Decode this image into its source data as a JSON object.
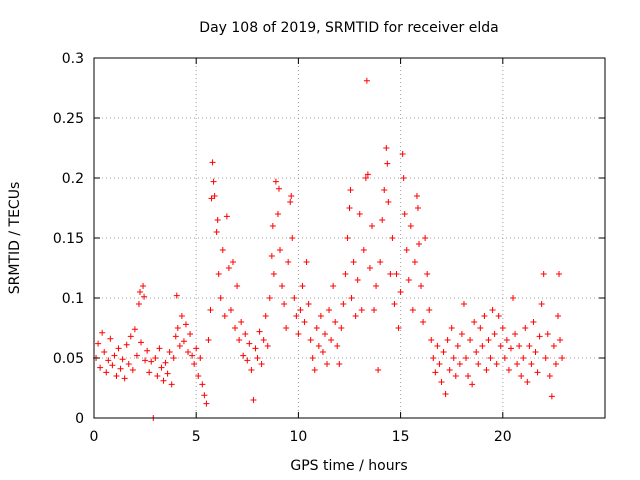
{
  "chart_data": {
    "type": "scatter",
    "title": "Day 108 of 2019, SRMTID for receiver elda",
    "xlabel": "GPS time / hours",
    "ylabel": "SRMTID / TECUs",
    "xlim": [
      0,
      25
    ],
    "ylim": [
      0,
      0.3
    ],
    "xticks": [
      0,
      5,
      10,
      15,
      20
    ],
    "yticks": [
      0,
      0.05,
      0.1,
      0.15,
      0.2,
      0.25,
      0.3
    ],
    "xtick_labels": [
      "0",
      "5",
      "10",
      "15",
      "20"
    ],
    "ytick_labels": [
      "0",
      "0.05",
      "0.1",
      "0.15",
      "0.2",
      "0.25",
      "0.3"
    ],
    "grid": true,
    "marker": "+",
    "color": "#ff0000",
    "series": [
      {
        "name": "SRMTID",
        "points": [
          [
            0.1,
            0.05
          ],
          [
            0.2,
            0.062
          ],
          [
            0.3,
            0.042
          ],
          [
            0.4,
            0.071
          ],
          [
            0.5,
            0.055
          ],
          [
            0.6,
            0.038
          ],
          [
            0.7,
            0.048
          ],
          [
            0.8,
            0.066
          ],
          [
            0.9,
            0.044
          ],
          [
            1.0,
            0.052
          ],
          [
            1.1,
            0.035
          ],
          [
            1.2,
            0.058
          ],
          [
            1.3,
            0.041
          ],
          [
            1.4,
            0.049
          ],
          [
            1.5,
            0.033
          ],
          [
            1.6,
            0.061
          ],
          [
            1.7,
            0.045
          ],
          [
            1.8,
            0.068
          ],
          [
            1.9,
            0.04
          ],
          [
            2.0,
            0.074
          ],
          [
            2.1,
            0.052
          ],
          [
            2.2,
            0.095
          ],
          [
            2.25,
            0.105
          ],
          [
            2.3,
            0.063
          ],
          [
            2.4,
            0.11
          ],
          [
            2.45,
            0.101
          ],
          [
            2.5,
            0.048
          ],
          [
            2.6,
            0.056
          ],
          [
            2.7,
            0.038
          ],
          [
            2.8,
            0.047
          ],
          [
            2.9,
            0.0
          ],
          [
            3.0,
            0.05
          ],
          [
            3.1,
            0.035
          ],
          [
            3.2,
            0.058
          ],
          [
            3.3,
            0.042
          ],
          [
            3.4,
            0.031
          ],
          [
            3.5,
            0.046
          ],
          [
            3.6,
            0.037
          ],
          [
            3.7,
            0.055
          ],
          [
            3.8,
            0.028
          ],
          [
            3.9,
            0.05
          ],
          [
            4.0,
            0.068
          ],
          [
            4.05,
            0.102
          ],
          [
            4.1,
            0.075
          ],
          [
            4.2,
            0.06
          ],
          [
            4.3,
            0.085
          ],
          [
            4.4,
            0.064
          ],
          [
            4.5,
            0.078
          ],
          [
            4.6,
            0.055
          ],
          [
            4.7,
            0.07
          ],
          [
            4.8,
            0.052
          ],
          [
            4.9,
            0.045
          ],
          [
            5.0,
            0.058
          ],
          [
            5.1,
            0.035
          ],
          [
            5.2,
            0.05
          ],
          [
            5.3,
            0.028
          ],
          [
            5.4,
            0.019
          ],
          [
            5.5,
            0.012
          ],
          [
            5.6,
            0.065
          ],
          [
            5.7,
            0.09
          ],
          [
            5.75,
            0.183
          ],
          [
            5.8,
            0.213
          ],
          [
            5.85,
            0.197
          ],
          [
            5.9,
            0.185
          ],
          [
            6.0,
            0.155
          ],
          [
            6.05,
            0.165
          ],
          [
            6.1,
            0.12
          ],
          [
            6.2,
            0.1
          ],
          [
            6.3,
            0.14
          ],
          [
            6.4,
            0.085
          ],
          [
            6.5,
            0.168
          ],
          [
            6.6,
            0.125
          ],
          [
            6.7,
            0.09
          ],
          [
            6.8,
            0.13
          ],
          [
            6.9,
            0.075
          ],
          [
            7.0,
            0.11
          ],
          [
            7.1,
            0.065
          ],
          [
            7.2,
            0.08
          ],
          [
            7.3,
            0.052
          ],
          [
            7.4,
            0.07
          ],
          [
            7.5,
            0.048
          ],
          [
            7.6,
            0.062
          ],
          [
            7.7,
            0.04
          ],
          [
            7.8,
            0.015
          ],
          [
            7.9,
            0.058
          ],
          [
            8.0,
            0.05
          ],
          [
            8.1,
            0.072
          ],
          [
            8.2,
            0.045
          ],
          [
            8.3,
            0.065
          ],
          [
            8.4,
            0.085
          ],
          [
            8.5,
            0.06
          ],
          [
            8.6,
            0.1
          ],
          [
            8.7,
            0.135
          ],
          [
            8.75,
            0.16
          ],
          [
            8.8,
            0.12
          ],
          [
            8.9,
            0.197
          ],
          [
            9.0,
            0.17
          ],
          [
            9.05,
            0.191
          ],
          [
            9.1,
            0.14
          ],
          [
            9.2,
            0.11
          ],
          [
            9.3,
            0.095
          ],
          [
            9.4,
            0.075
          ],
          [
            9.5,
            0.13
          ],
          [
            9.6,
            0.18
          ],
          [
            9.65,
            0.185
          ],
          [
            9.7,
            0.15
          ],
          [
            9.8,
            0.1
          ],
          [
            9.9,
            0.085
          ],
          [
            10.0,
            0.07
          ],
          [
            10.1,
            0.09
          ],
          [
            10.2,
            0.11
          ],
          [
            10.3,
            0.08
          ],
          [
            10.4,
            0.13
          ],
          [
            10.5,
            0.095
          ],
          [
            10.6,
            0.065
          ],
          [
            10.7,
            0.05
          ],
          [
            10.8,
            0.04
          ],
          [
            10.9,
            0.075
          ],
          [
            11.0,
            0.06
          ],
          [
            11.1,
            0.085
          ],
          [
            11.2,
            0.055
          ],
          [
            11.3,
            0.07
          ],
          [
            11.4,
            0.045
          ],
          [
            11.5,
            0.09
          ],
          [
            11.6,
            0.065
          ],
          [
            11.7,
            0.11
          ],
          [
            11.8,
            0.08
          ],
          [
            11.9,
            0.06
          ],
          [
            12.0,
            0.045
          ],
          [
            12.1,
            0.075
          ],
          [
            12.2,
            0.095
          ],
          [
            12.3,
            0.12
          ],
          [
            12.4,
            0.15
          ],
          [
            12.5,
            0.175
          ],
          [
            12.55,
            0.19
          ],
          [
            12.6,
            0.1
          ],
          [
            12.7,
            0.13
          ],
          [
            12.8,
            0.085
          ],
          [
            12.9,
            0.115
          ],
          [
            13.0,
            0.17
          ],
          [
            13.1,
            0.09
          ],
          [
            13.2,
            0.14
          ],
          [
            13.3,
            0.2
          ],
          [
            13.35,
            0.281
          ],
          [
            13.4,
            0.203
          ],
          [
            13.5,
            0.125
          ],
          [
            13.6,
            0.16
          ],
          [
            13.7,
            0.09
          ],
          [
            13.8,
            0.11
          ],
          [
            13.9,
            0.04
          ],
          [
            14.0,
            0.13
          ],
          [
            14.1,
            0.165
          ],
          [
            14.2,
            0.19
          ],
          [
            14.3,
            0.225
          ],
          [
            14.35,
            0.212
          ],
          [
            14.4,
            0.18
          ],
          [
            14.5,
            0.12
          ],
          [
            14.6,
            0.15
          ],
          [
            14.7,
            0.095
          ],
          [
            14.8,
            0.12
          ],
          [
            14.9,
            0.075
          ],
          [
            15.0,
            0.105
          ],
          [
            15.1,
            0.22
          ],
          [
            15.15,
            0.2
          ],
          [
            15.2,
            0.17
          ],
          [
            15.3,
            0.14
          ],
          [
            15.4,
            0.115
          ],
          [
            15.5,
            0.16
          ],
          [
            15.6,
            0.09
          ],
          [
            15.7,
            0.13
          ],
          [
            15.8,
            0.185
          ],
          [
            15.85,
            0.175
          ],
          [
            15.9,
            0.145
          ],
          [
            16.0,
            0.11
          ],
          [
            16.1,
            0.08
          ],
          [
            16.2,
            0.15
          ],
          [
            16.3,
            0.12
          ],
          [
            16.4,
            0.09
          ],
          [
            16.5,
            0.065
          ],
          [
            16.6,
            0.05
          ],
          [
            16.7,
            0.038
          ],
          [
            16.8,
            0.06
          ],
          [
            16.9,
            0.045
          ],
          [
            17.0,
            0.03
          ],
          [
            17.1,
            0.055
          ],
          [
            17.2,
            0.02
          ],
          [
            17.3,
            0.065
          ],
          [
            17.4,
            0.04
          ],
          [
            17.5,
            0.075
          ],
          [
            17.6,
            0.05
          ],
          [
            17.7,
            0.035
          ],
          [
            17.8,
            0.06
          ],
          [
            17.9,
            0.045
          ],
          [
            18.0,
            0.07
          ],
          [
            18.1,
            0.095
          ],
          [
            18.2,
            0.05
          ],
          [
            18.3,
            0.035
          ],
          [
            18.4,
            0.065
          ],
          [
            18.5,
            0.028
          ],
          [
            18.6,
            0.08
          ],
          [
            18.7,
            0.055
          ],
          [
            18.8,
            0.045
          ],
          [
            18.9,
            0.075
          ],
          [
            19.0,
            0.06
          ],
          [
            19.1,
            0.085
          ],
          [
            19.2,
            0.04
          ],
          [
            19.3,
            0.065
          ],
          [
            19.4,
            0.05
          ],
          [
            19.5,
            0.09
          ],
          [
            19.6,
            0.07
          ],
          [
            19.7,
            0.045
          ],
          [
            19.8,
            0.085
          ],
          [
            19.9,
            0.06
          ],
          [
            20.0,
            0.075
          ],
          [
            20.1,
            0.05
          ],
          [
            20.2,
            0.065
          ],
          [
            20.3,
            0.04
          ],
          [
            20.4,
            0.058
          ],
          [
            20.5,
            0.1
          ],
          [
            20.6,
            0.07
          ],
          [
            20.7,
            0.045
          ],
          [
            20.8,
            0.06
          ],
          [
            20.9,
            0.035
          ],
          [
            21.0,
            0.05
          ],
          [
            21.1,
            0.075
          ],
          [
            21.2,
            0.03
          ],
          [
            21.3,
            0.06
          ],
          [
            21.4,
            0.045
          ],
          [
            21.5,
            0.08
          ],
          [
            21.6,
            0.055
          ],
          [
            21.7,
            0.038
          ],
          [
            21.8,
            0.068
          ],
          [
            21.9,
            0.095
          ],
          [
            22.0,
            0.12
          ],
          [
            22.1,
            0.05
          ],
          [
            22.2,
            0.07
          ],
          [
            22.3,
            0.035
          ],
          [
            22.4,
            0.018
          ],
          [
            22.5,
            0.06
          ],
          [
            22.6,
            0.045
          ],
          [
            22.7,
            0.085
          ],
          [
            22.75,
            0.12
          ],
          [
            22.8,
            0.065
          ],
          [
            22.9,
            0.05
          ]
        ]
      }
    ]
  }
}
